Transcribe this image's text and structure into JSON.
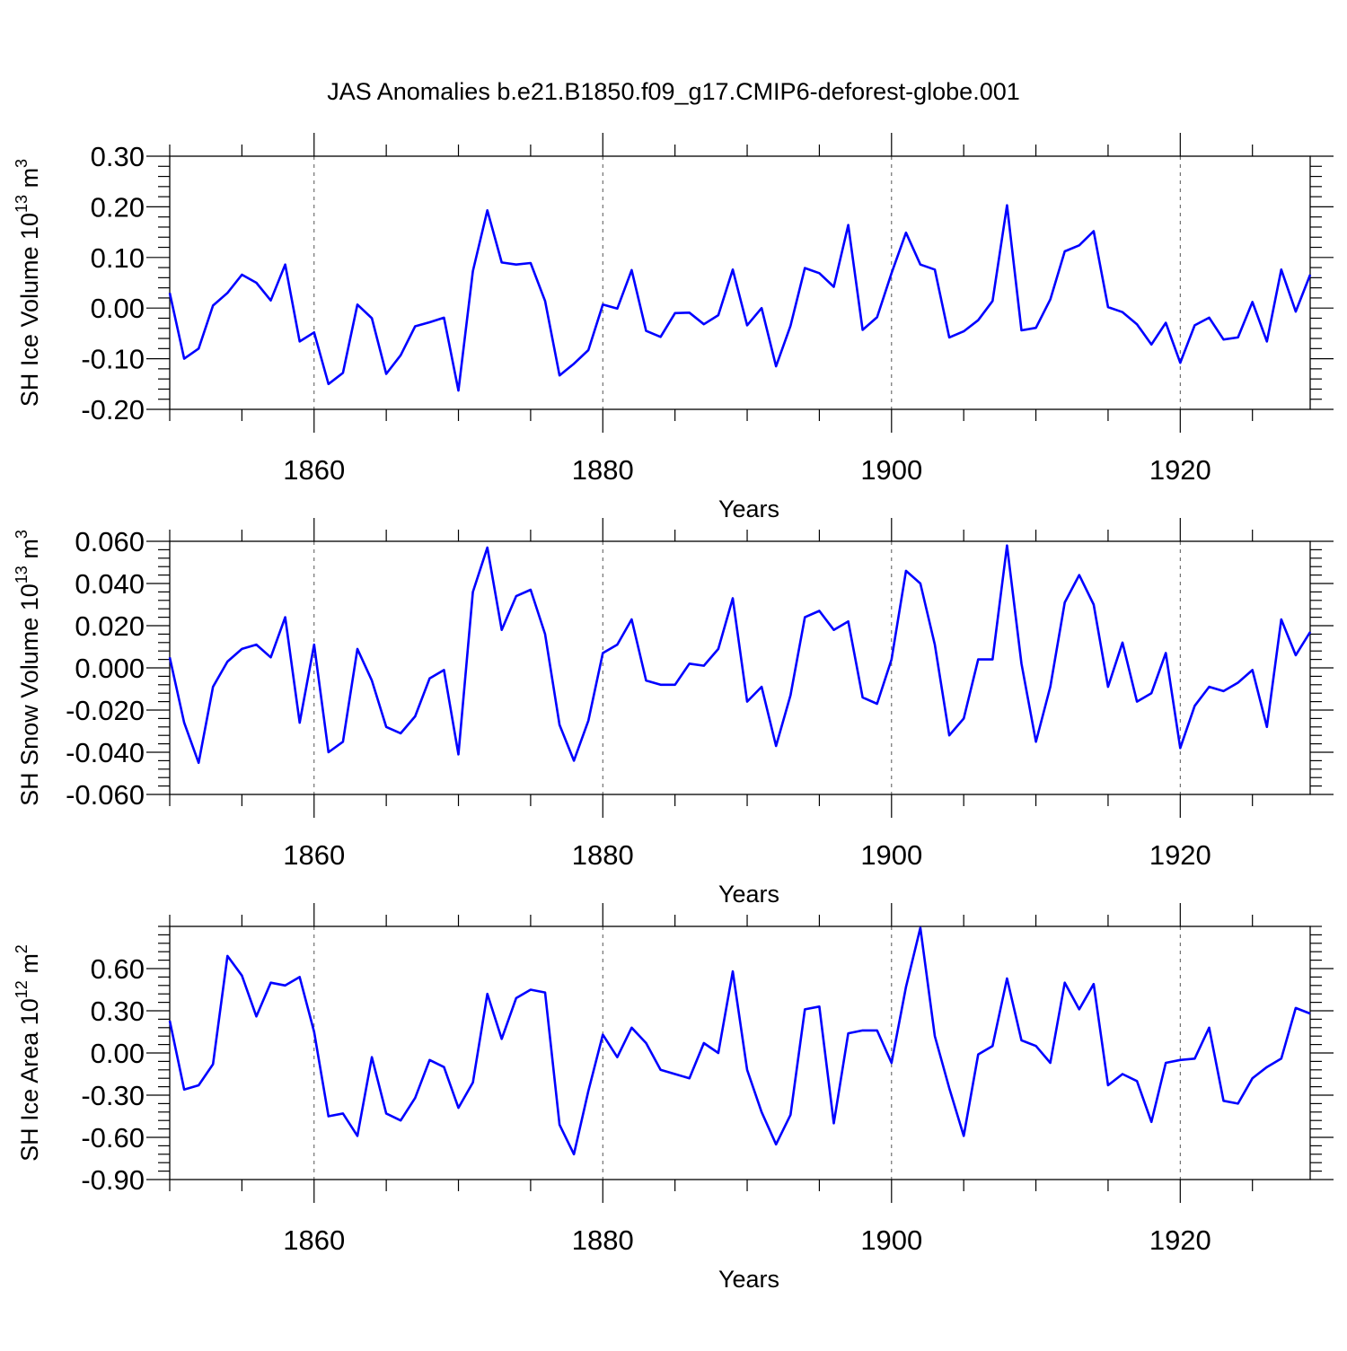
{
  "title": "JAS Anomalies b.e21.B1850.f09_g17.CMIP6-deforest-globe.001",
  "line_color": "#0000ff",
  "chart_data": [
    {
      "type": "line",
      "ylabel": "SH Ice Volume 10",
      "ylabel_exp": "13",
      "ylabel_unit": " m",
      "ylabel_unit_exp": "3",
      "xlabel": "Years",
      "xlim": [
        1850,
        1929
      ],
      "ylim": [
        -0.2,
        0.3
      ],
      "yticks": [
        -0.2,
        -0.1,
        0.0,
        0.1,
        0.2,
        0.3
      ],
      "ytick_labels": [
        "-0.20",
        "-0.10",
        "0.00",
        "0.10",
        "0.20",
        "0.30"
      ],
      "xticks": [
        1860,
        1880,
        1900,
        1920
      ],
      "xtick_labels": [
        "1860",
        "1880",
        "1900",
        "1920"
      ],
      "x_start": 1850,
      "values": [
        0.03,
        -0.1,
        -0.08,
        0.005,
        0.03,
        0.066,
        0.05,
        0.015,
        0.086,
        -0.066,
        -0.048,
        -0.15,
        -0.128,
        0.007,
        -0.02,
        -0.13,
        -0.093,
        -0.036,
        -0.028,
        -0.019,
        -0.163,
        0.073,
        0.193,
        0.09,
        0.086,
        0.089,
        0.014,
        -0.133,
        -0.11,
        -0.083,
        0.007,
        -0.001,
        0.075,
        -0.045,
        -0.057,
        -0.01,
        -0.009,
        -0.032,
        -0.014,
        0.076,
        -0.034,
        0.0,
        -0.115,
        -0.035,
        0.079,
        0.069,
        0.042,
        0.164,
        -0.043,
        -0.018,
        0.069,
        0.149,
        0.086,
        0.076,
        -0.058,
        -0.046,
        -0.024,
        0.014,
        0.203,
        -0.044,
        -0.039,
        0.017,
        0.112,
        0.124,
        0.152,
        0.002,
        -0.008,
        -0.032,
        -0.072,
        -0.029,
        -0.108,
        -0.034,
        -0.019,
        -0.062,
        -0.058,
        0.012,
        -0.066,
        0.076,
        -0.007,
        0.066
      ]
    },
    {
      "type": "line",
      "ylabel": "SH Snow Volume 10",
      "ylabel_exp": "13",
      "ylabel_unit": " m",
      "ylabel_unit_exp": "3",
      "xlabel": "Years",
      "xlim": [
        1850,
        1929
      ],
      "ylim": [
        -0.06,
        0.06
      ],
      "yticks": [
        -0.06,
        -0.04,
        -0.02,
        0.0,
        0.02,
        0.04,
        0.06
      ],
      "ytick_labels": [
        "-0.060",
        "-0.040",
        "-0.020",
        "0.000",
        "0.020",
        "0.040",
        "0.060"
      ],
      "xticks": [
        1860,
        1880,
        1900,
        1920
      ],
      "xtick_labels": [
        "1860",
        "1880",
        "1900",
        "1920"
      ],
      "x_start": 1850,
      "values": [
        0.005,
        -0.026,
        -0.045,
        -0.009,
        0.003,
        0.009,
        0.011,
        0.005,
        0.024,
        -0.026,
        0.011,
        -0.04,
        -0.035,
        0.009,
        -0.006,
        -0.028,
        -0.031,
        -0.023,
        -0.005,
        -0.001,
        -0.041,
        0.036,
        0.057,
        0.018,
        0.034,
        0.037,
        0.016,
        -0.027,
        -0.044,
        -0.025,
        0.007,
        0.011,
        0.023,
        -0.006,
        -0.008,
        -0.008,
        0.002,
        0.001,
        0.009,
        0.033,
        -0.016,
        -0.009,
        -0.037,
        -0.013,
        0.024,
        0.027,
        0.018,
        0.022,
        -0.014,
        -0.017,
        0.004,
        0.046,
        0.04,
        0.011,
        -0.032,
        -0.024,
        0.004,
        0.004,
        0.058,
        0.002,
        -0.035,
        -0.009,
        0.031,
        0.044,
        0.03,
        -0.009,
        0.012,
        -0.016,
        -0.012,
        0.007,
        -0.038,
        -0.018,
        -0.009,
        -0.011,
        -0.007,
        -0.001,
        -0.028,
        0.023,
        0.006,
        0.017
      ]
    },
    {
      "type": "line",
      "ylabel": "SH Ice Area 10",
      "ylabel_exp": "12",
      "ylabel_unit": " m",
      "ylabel_unit_exp": "2",
      "xlabel": "Years",
      "xlim": [
        1850,
        1929
      ],
      "ylim": [
        -0.9,
        0.9
      ],
      "yticks": [
        -0.9,
        -0.6,
        -0.3,
        0.0,
        0.3,
        0.6
      ],
      "ytick_labels": [
        "-0.90",
        "-0.60",
        "-0.30",
        "0.00",
        "0.30",
        "0.60"
      ],
      "xticks": [
        1860,
        1880,
        1900,
        1920
      ],
      "xtick_labels": [
        "1860",
        "1880",
        "1900",
        "1920"
      ],
      "x_start": 1850,
      "values": [
        0.23,
        -0.26,
        -0.23,
        -0.08,
        0.69,
        0.55,
        0.26,
        0.5,
        0.48,
        0.54,
        0.15,
        -0.45,
        -0.43,
        -0.59,
        -0.03,
        -0.43,
        -0.48,
        -0.32,
        -0.05,
        -0.1,
        -0.39,
        -0.21,
        0.42,
        0.1,
        0.39,
        0.45,
        0.43,
        -0.51,
        -0.72,
        -0.27,
        0.13,
        -0.03,
        0.18,
        0.07,
        -0.12,
        -0.15,
        -0.18,
        0.07,
        0.0,
        0.58,
        -0.12,
        -0.42,
        -0.65,
        -0.44,
        0.31,
        0.33,
        -0.5,
        0.14,
        0.16,
        0.16,
        -0.07,
        0.47,
        0.89,
        0.12,
        -0.25,
        -0.59,
        -0.01,
        0.05,
        0.53,
        0.09,
        0.05,
        -0.07,
        0.5,
        0.31,
        0.49,
        -0.23,
        -0.15,
        -0.2,
        -0.49,
        -0.07,
        -0.05,
        -0.04,
        0.18,
        -0.34,
        -0.36,
        -0.18,
        -0.1,
        -0.04,
        0.32,
        0.28
      ]
    }
  ]
}
